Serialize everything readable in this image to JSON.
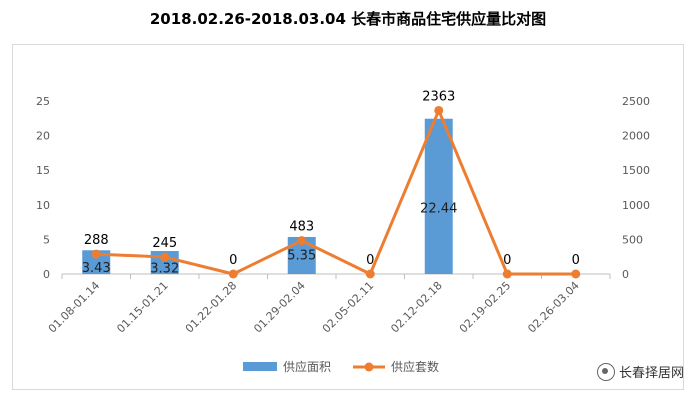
{
  "chart_data": {
    "type": "bar+line",
    "title": "2018.02.26-2018.03.04 长春市商品住宅供应量比对图",
    "categories": [
      "01.08-01.14",
      "01.15-01.21",
      "01.22-01.28",
      "01.29-02.04",
      "02.05-02.11",
      "02.12-02.18",
      "02.19-02.25",
      "02.26-03.04"
    ],
    "series": [
      {
        "name": "供应面积",
        "type": "bar",
        "axis": "left",
        "color": "#5b9bd5",
        "values": [
          3.43,
          3.32,
          0,
          5.35,
          0,
          22.44,
          0,
          0
        ],
        "labels": [
          "3.43",
          "3.32",
          "",
          "5.35",
          "",
          "22.44",
          "",
          ""
        ]
      },
      {
        "name": "供应套数",
        "type": "line",
        "axis": "right",
        "color": "#ed7d31",
        "values": [
          288,
          245,
          0,
          483,
          0,
          2363,
          0,
          0
        ],
        "labels": [
          "288",
          "245",
          "0",
          "483",
          "0",
          "2363",
          "0",
          "0"
        ]
      }
    ],
    "y_left": {
      "min": 0,
      "max": 25,
      "ticks": [
        "0",
        "5",
        "10",
        "15",
        "20",
        "25"
      ]
    },
    "y_right": {
      "min": 0,
      "max": 2500,
      "ticks": [
        "0",
        "500",
        "1000",
        "1500",
        "2000",
        "2500"
      ]
    },
    "legend": "bottom",
    "grid": false
  },
  "watermark": "长春择居网"
}
